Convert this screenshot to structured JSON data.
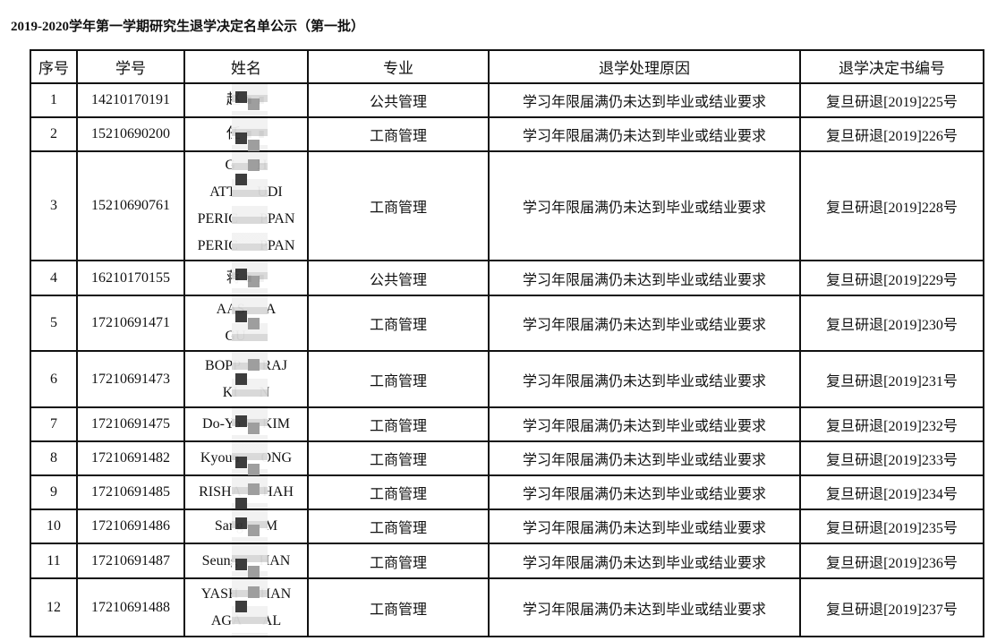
{
  "title": "2019-2020学年第一学期研究生退学决定名单公示（第一批）",
  "headers": [
    "序号",
    "学号",
    "姓名",
    "专业",
    "退学处理原因",
    "退学决定书编号"
  ],
  "rows": [
    {
      "no": "1",
      "id": "14210170191",
      "name": [
        "赵 ∎ ∎"
      ],
      "major": "公共管理",
      "reason": "学习年限届满仍未达到毕业或结业要求",
      "doc": "复旦研退[2019]225号"
    },
    {
      "no": "2",
      "id": "15210690200",
      "name": [
        "任 ∎ ∎"
      ],
      "major": "工商管理",
      "reason": "学习年限届满仍未达到毕业或结业要求",
      "doc": "复旦研退[2019]226号"
    },
    {
      "no": "3",
      "id": "15210690761",
      "name": [
        "G      H",
        "ATT      UDI",
        "PERIC      PPAN",
        "PERIC      PPAN"
      ],
      "major": "工商管理",
      "reason": "学习年限届满仍未达到毕业或结业要求",
      "doc": "复旦研退[2019]228号"
    },
    {
      "no": "4",
      "id": "16210170155",
      "name": [
        "蒋 ∎ ∎"
      ],
      "major": "公共管理",
      "reason": "学习年限届满仍未达到毕业或结业要求",
      "doc": "复旦研退[2019]229号"
    },
    {
      "no": "5",
      "id": "17210691471",
      "name": [
        "AAS      A",
        "GU      "
      ],
      "major": "工商管理",
      "reason": "学习年限届满仍未达到毕业或结业要求",
      "doc": "复旦研退[2019]230号"
    },
    {
      "no": "6",
      "id": "17210691473",
      "name": [
        "BOPP      RAJ",
        "KI      N"
      ],
      "major": "工商管理",
      "reason": "学习年限届满仍未达到毕业或结业要求",
      "doc": "复旦研退[2019]231号"
    },
    {
      "no": "7",
      "id": "17210691475",
      "name": [
        "Do-Yo      KIM"
      ],
      "major": "工商管理",
      "reason": "学习年限届满仍未达到毕业或结业要求",
      "doc": "复旦研退[2019]232号"
    },
    {
      "no": "8",
      "id": "17210691482",
      "name": [
        "Kyoun      ONG"
      ],
      "major": "工商管理",
      "reason": "学习年限届满仍未达到毕业或结业要求",
      "doc": "复旦研退[2019]233号"
    },
    {
      "no": "9",
      "id": "17210691485",
      "name": [
        "RISHA      HAH"
      ],
      "major": "工商管理",
      "reason": "学习年限届满仍未达到毕业或结业要求",
      "doc": "复旦研退[2019]234号"
    },
    {
      "no": "10",
      "id": "17210691486",
      "name": [
        "Sang      M"
      ],
      "major": "工商管理",
      "reason": "学习年限届满仍未达到毕业或结业要求",
      "doc": "复旦研退[2019]235号"
    },
    {
      "no": "11",
      "id": "17210691487",
      "name": [
        "Seung      HAN"
      ],
      "major": "工商管理",
      "reason": "学习年限届满仍未达到毕业或结业要求",
      "doc": "复旦研退[2019]236号"
    },
    {
      "no": "12",
      "id": "17210691488",
      "name": [
        "YASH      HAN",
        "AGA      AL"
      ],
      "major": "工商管理",
      "reason": "学习年限届满仍未达到毕业或结业要求",
      "doc": "复旦研退[2019]237号"
    }
  ]
}
